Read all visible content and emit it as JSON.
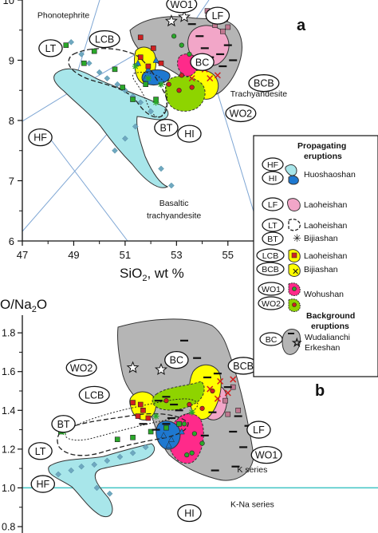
{
  "chart_data": [
    {
      "type": "scatter",
      "panel_letter": "a",
      "xlabel_main": "SiO",
      "xlabel_sub": "2",
      "xlabel_rest": ", wt %",
      "x_ticks": [
        "47",
        "49",
        "51",
        "53",
        "55"
      ],
      "y_ticks": [
        "6",
        "7",
        "8",
        "9",
        "10"
      ],
      "xlim": [
        47,
        56
      ],
      "ylim": [
        6,
        10
      ],
      "field_labels": [
        {
          "text": "Phonotephrite",
          "x": 48.6,
          "y": 9.7
        },
        {
          "text": "Trachyandesite",
          "x": 56.2,
          "y": 8.4
        },
        {
          "text": "Basaltic",
          "x": 52.9,
          "y": 6.58
        },
        {
          "text": "trachyandesite",
          "x": 52.9,
          "y": 6.38
        }
      ],
      "group_labels": [
        {
          "text": "WO1",
          "x": 53.2,
          "y": 9.93
        },
        {
          "text": "LF",
          "x": 54.6,
          "y": 9.74
        },
        {
          "text": "LCB",
          "x": 50.2,
          "y": 9.35
        },
        {
          "text": "LT",
          "x": 48.1,
          "y": 9.2
        },
        {
          "text": "BC",
          "x": 54.0,
          "y": 8.97
        },
        {
          "text": "BCB",
          "x": 56.4,
          "y": 8.62
        },
        {
          "text": "WO2",
          "x": 55.5,
          "y": 8.12
        },
        {
          "text": "BT",
          "x": 52.6,
          "y": 7.88
        },
        {
          "text": "HI",
          "x": 53.5,
          "y": 7.78
        },
        {
          "text": "HF",
          "x": 47.7,
          "y": 7.72
        }
      ],
      "series": [
        {
          "group": "HF",
          "marker": "diamond",
          "points": [
            [
              48.9,
              9.3
            ],
            [
              49.3,
              9.1
            ],
            [
              49.6,
              8.95
            ],
            [
              50.0,
              8.8
            ],
            [
              50.3,
              8.7
            ],
            [
              50.7,
              8.6
            ],
            [
              51.0,
              8.5
            ],
            [
              51.3,
              8.4
            ],
            [
              51.6,
              8.3
            ],
            [
              52.0,
              8.15
            ],
            [
              51.4,
              7.9
            ],
            [
              51.0,
              7.7
            ],
            [
              50.6,
              7.5
            ],
            [
              52.4,
              7.2
            ],
            [
              52.8,
              6.92
            ]
          ]
        },
        {
          "group": "HI",
          "marker": "triangle",
          "points": [
            [
              51.5,
              8.95
            ],
            [
              51.9,
              8.85
            ],
            [
              52.2,
              9.0
            ],
            [
              51.8,
              8.7
            ]
          ]
        },
        {
          "group": "LF",
          "marker": "square",
          "points": [
            [
              54.2,
              9.82
            ],
            [
              54.6,
              9.75
            ],
            [
              54.9,
              9.68
            ],
            [
              54.5,
              9.58
            ],
            [
              55.0,
              9.55
            ],
            [
              54.8,
              9.48
            ]
          ]
        },
        {
          "group": "LT",
          "marker": "square",
          "points": [
            [
              48.7,
              9.25
            ],
            [
              49.8,
              9.15
            ],
            [
              49.4,
              8.95
            ],
            [
              50.6,
              8.85
            ],
            [
              50.9,
              8.55
            ],
            [
              51.3,
              8.35
            ],
            [
              51.8,
              8.6
            ],
            [
              52.2,
              8.35
            ]
          ]
        },
        {
          "group": "BT",
          "marker": "asterisk",
          "points": [
            [
              51.4,
              8.9
            ],
            [
              51.9,
              8.7
            ],
            [
              52.2,
              8.3
            ],
            [
              52.4,
              8.6
            ]
          ]
        },
        {
          "group": "LCB",
          "marker": "square",
          "points": [
            [
              51.6,
              9.38
            ],
            [
              51.6,
              9.05
            ],
            [
              51.9,
              8.9
            ],
            [
              52.4,
              8.95
            ],
            [
              52.1,
              9.2
            ]
          ]
        },
        {
          "group": "BCB",
          "marker": "x",
          "points": [
            [
              53.6,
              8.7
            ],
            [
              54.1,
              8.85
            ],
            [
              54.3,
              8.7
            ],
            [
              54.6,
              8.75
            ],
            [
              53.9,
              8.9
            ]
          ]
        },
        {
          "group": "WO1",
          "marker": "circle",
          "points": [
            [
              52.9,
              9.4
            ],
            [
              53.2,
              9.25
            ],
            [
              53.5,
              9.1
            ]
          ]
        },
        {
          "group": "WO2",
          "marker": "circle",
          "points": [
            [
              52.7,
              8.6
            ],
            [
              53.1,
              8.5
            ],
            [
              53.6,
              8.55
            ],
            [
              53.2,
              8.75
            ]
          ]
        },
        {
          "group": "BC",
          "marker": "dash",
          "points": [
            [
              53.6,
              9.6
            ],
            [
              53.9,
              9.4
            ],
            [
              54.1,
              9.2
            ],
            [
              53.9,
              9.0
            ],
            [
              54.3,
              9.05
            ],
            [
              54.7,
              9.1
            ],
            [
              55.0,
              9.25
            ],
            [
              55.2,
              9.0
            ],
            [
              54.8,
              8.9
            ]
          ]
        },
        {
          "group": "Erkeshan",
          "marker": "star",
          "points": [
            [
              52.8,
              9.65
            ],
            [
              53.3,
              9.72
            ]
          ]
        }
      ]
    },
    {
      "type": "scatter",
      "panel_letter": "b",
      "ylabel": "O/Na",
      "ylabel_sub": "2",
      "ylabel_rest": "O",
      "y_ticks": [
        "0.8",
        "1.0",
        "1.2",
        "1.4",
        "1.6",
        "1.8"
      ],
      "ylim": [
        0.8,
        1.85
      ],
      "xlim": [
        47,
        56
      ],
      "reference_line": {
        "y": 1.0,
        "color": "#40c4c4"
      },
      "field_labels": [
        {
          "text": "K series",
          "x": 55.95,
          "y": 1.08
        },
        {
          "text": "K-Na series",
          "x": 55.95,
          "y": 0.9
        }
      ],
      "group_labels": [
        {
          "text": "BC",
          "x": 53.0,
          "y": 1.66
        },
        {
          "text": "BCB",
          "x": 55.6,
          "y": 1.63
        },
        {
          "text": "WO2",
          "x": 49.3,
          "y": 1.62
        },
        {
          "text": "LCB",
          "x": 49.8,
          "y": 1.48
        },
        {
          "text": "BT",
          "x": 48.6,
          "y": 1.33
        },
        {
          "text": "LF",
          "x": 56.2,
          "y": 1.3
        },
        {
          "text": "LT",
          "x": 47.7,
          "y": 1.19
        },
        {
          "text": "WO1",
          "x": 56.5,
          "y": 1.17
        },
        {
          "text": "HF",
          "x": 47.8,
          "y": 1.02
        },
        {
          "text": "HI",
          "x": 53.5,
          "y": 0.87
        }
      ],
      "series": [
        {
          "group": "HF",
          "marker": "diamond",
          "points": [
            [
              48.4,
              1.07
            ],
            [
              48.9,
              1.09
            ],
            [
              49.3,
              1.11
            ],
            [
              49.8,
              1.12
            ],
            [
              50.3,
              1.14
            ],
            [
              50.8,
              1.16
            ],
            [
              51.3,
              1.18
            ],
            [
              51.8,
              1.21
            ],
            [
              49.9,
              1.0
            ],
            [
              50.4,
              0.97
            ]
          ]
        },
        {
          "group": "HI",
          "marker": "triangle",
          "points": [
            [
              52.5,
              1.27
            ],
            [
              52.8,
              1.25
            ],
            [
              53.2,
              1.29
            ],
            [
              52.7,
              1.22
            ]
          ]
        },
        {
          "group": "LF",
          "marker": "square",
          "points": [
            [
              55.2,
              1.52
            ],
            [
              54.9,
              1.45
            ],
            [
              55.4,
              1.4
            ],
            [
              55.0,
              1.38
            ]
          ]
        },
        {
          "group": "LT",
          "marker": "square",
          "points": [
            [
              48.5,
              1.29
            ],
            [
              50.7,
              1.25
            ],
            [
              51.3,
              1.26
            ],
            [
              52.0,
              1.29
            ],
            [
              52.6,
              1.31
            ],
            [
              53.1,
              1.33
            ]
          ]
        },
        {
          "group": "BT",
          "marker": "asterisk",
          "points": [
            [
              48.6,
              1.29
            ],
            [
              52.2,
              1.37
            ],
            [
              53.6,
              1.39
            ]
          ]
        },
        {
          "group": "LCB",
          "marker": "square",
          "points": [
            [
              51.3,
              1.44
            ],
            [
              51.6,
              1.43
            ],
            [
              51.5,
              1.37
            ],
            [
              51.9,
              1.36
            ],
            [
              51.7,
              1.4
            ]
          ]
        },
        {
          "group": "BCB",
          "marker": "x",
          "points": [
            [
              54.3,
              1.51
            ],
            [
              54.7,
              1.55
            ],
            [
              55.2,
              1.56
            ],
            [
              55.0,
              1.49
            ],
            [
              54.6,
              1.46
            ]
          ]
        },
        {
          "group": "WO1",
          "marker": "circle",
          "points": [
            [
              53.3,
              1.33
            ],
            [
              53.7,
              1.28
            ],
            [
              54.0,
              1.23
            ],
            [
              53.6,
              1.18
            ],
            [
              53.4,
              1.17
            ]
          ]
        },
        {
          "group": "WO2",
          "marker": "circle",
          "points": [
            [
              52.6,
              1.45
            ],
            [
              53.5,
              1.43
            ],
            [
              54.0,
              1.41
            ],
            [
              54.4,
              1.5
            ]
          ]
        },
        {
          "group": "BC",
          "marker": "dash",
          "points": [
            [
              53.3,
              1.76
            ],
            [
              53.8,
              1.67
            ],
            [
              54.2,
              1.57
            ],
            [
              54.6,
              1.59
            ],
            [
              55.0,
              1.52
            ],
            [
              54.4,
              1.39
            ],
            [
              55.4,
              1.37
            ],
            [
              55.8,
              1.32
            ],
            [
              54.1,
              1.27
            ],
            [
              55.2,
              1.29
            ],
            [
              55.6,
              1.21
            ],
            [
              54.5,
              1.09
            ],
            [
              55.3,
              1.11
            ],
            [
              52.3,
              1.45
            ],
            [
              52.6,
              1.47
            ],
            [
              52.9,
              1.43
            ],
            [
              53.1,
              1.4
            ],
            [
              52.8,
              1.36
            ],
            [
              52.6,
              1.33
            ],
            [
              51.7,
              1.33
            ],
            [
              52.2,
              1.3
            ]
          ]
        },
        {
          "group": "Erkeshan",
          "marker": "star",
          "points": [
            [
              51.3,
              1.62
            ],
            [
              52.4,
              1.61
            ]
          ]
        }
      ]
    }
  ],
  "legend": {
    "header_propagating": [
      "Propagating",
      "eruptions"
    ],
    "header_background": [
      "Background",
      "eruptions"
    ],
    "rows": [
      {
        "keys": [
          "HF",
          "HI"
        ],
        "name": "Huoshaoshan",
        "swatch": "huoshaoshan"
      },
      {
        "keys": [
          "LF"
        ],
        "name": "Laoheishan",
        "swatch": "laoheishan-pink"
      },
      {
        "keys": [
          "LT",
          "BT"
        ],
        "names": [
          "Laoheishan",
          "Bijiashan"
        ],
        "swatch": "tephra"
      },
      {
        "keys": [
          "LCB",
          "BCB"
        ],
        "names": [
          "Laoheishan",
          "Bijiashan"
        ],
        "swatch": "cones"
      },
      {
        "keys": [
          "WO1",
          "WO2"
        ],
        "name": "Wohushan",
        "swatch": "wohushan"
      },
      {
        "keys": [
          "BC"
        ],
        "names": [
          "Wudalianchi",
          "Erkeshan"
        ],
        "swatch": "background"
      }
    ]
  },
  "colors": {
    "huoshaoshan": "#a8e6ea",
    "laoheishan_pink": "#f2a6c8",
    "yellow": "#ffff00",
    "green": "#8ed400",
    "magenta": "#ff2a8a",
    "grey_field": "#b5b5b5",
    "blue_marker": "#1e78d0",
    "classification_lines": "#7ea6d4"
  }
}
